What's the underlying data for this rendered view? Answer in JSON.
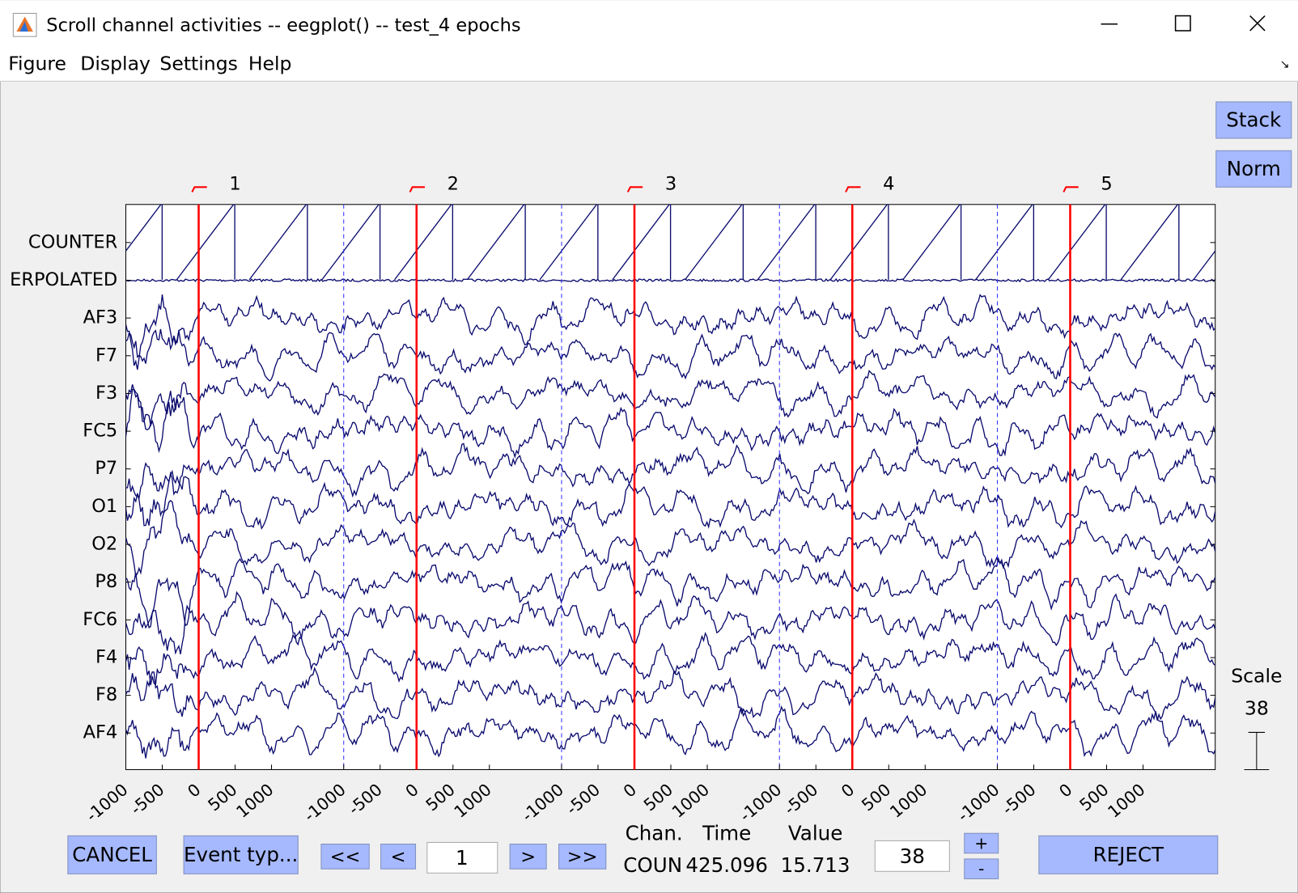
{
  "window": {
    "title": "Scroll channel activities -- eegplot() -- test_4 epochs"
  },
  "menu": [
    "Figure",
    "Display",
    "Settings",
    "Help"
  ],
  "side_buttons": [
    "Stack",
    "Norm"
  ],
  "channels": [
    "COUNTER",
    "ERPOLATED",
    "AF3",
    "F7",
    "F3",
    "FC5",
    "P7",
    "O1",
    "O2",
    "P8",
    "FC6",
    "F4",
    "F8",
    "AF4"
  ],
  "epochs": [
    "1",
    "2",
    "3",
    "4",
    "5"
  ],
  "x_ticks": [
    "-1000",
    "-500",
    "0",
    "500",
    "1000"
  ],
  "scale": {
    "label": "Scale",
    "value": "38"
  },
  "bottom": {
    "cancel": "CANCEL",
    "event_types": "Event typ...",
    "nav": [
      "<<",
      "<",
      "1",
      ">",
      ">>"
    ],
    "headers": [
      "Chan.",
      "Time",
      "Value"
    ],
    "readout": [
      "COUN",
      "425.096",
      "15.713"
    ],
    "scale_input": "38",
    "plus": "+",
    "minus": "-",
    "reject": "REJECT"
  }
}
